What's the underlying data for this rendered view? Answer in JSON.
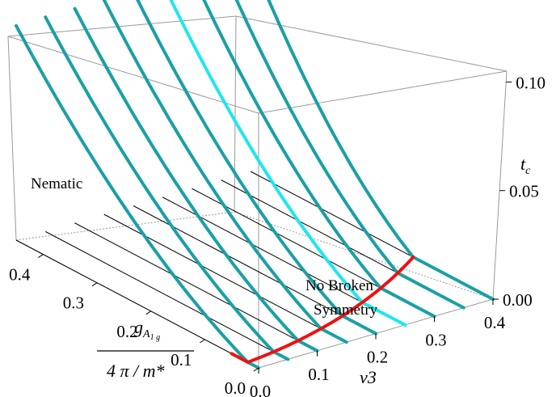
{
  "chart_data": {
    "type": "line3d",
    "x_axis": {
      "label": "ν3",
      "range": [
        0.0,
        0.4
      ],
      "ticks": [
        "0.0",
        "0.1",
        "0.2",
        "0.3",
        "0.4"
      ]
    },
    "y_axis": {
      "label_num": "g",
      "label_sub": "A",
      "label_subsub": "1 g",
      "label_den": "4 π / m*",
      "range": [
        0.0,
        0.45
      ],
      "ticks": [
        "0.0",
        "0.1",
        "0.2",
        "0.3",
        "0.4"
      ]
    },
    "z_axis": {
      "label": "t",
      "label_sub": "c",
      "range": [
        0.0,
        0.1
      ],
      "ticks": [
        "0.00",
        "0.05",
        "0.10"
      ]
    },
    "regions": {
      "nematic": "Nematic",
      "no_broken_line1": "No Broken",
      "no_broken_line2": "Symmetry"
    },
    "series_nu3": [
      0.0,
      0.05,
      0.1,
      0.15,
      0.2,
      0.25,
      0.3,
      0.35,
      0.4
    ],
    "highlight_nu3": 0.25,
    "g_max": 0.45,
    "tc_at_gmax": 0.104,
    "colors": {
      "curve": "#1aa0a4",
      "highlight": "#1fe6ee",
      "boundary": "#ee1111",
      "grid": "#000000",
      "box": "#999999"
    }
  }
}
